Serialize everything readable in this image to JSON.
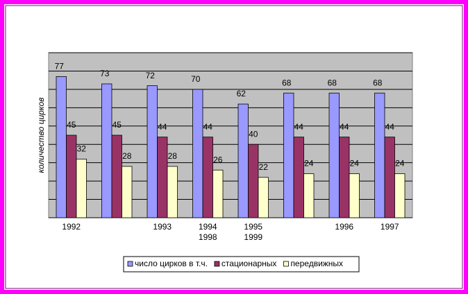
{
  "chart_data": {
    "type": "bar",
    "y_axis_label": "количество цирков",
    "categories": [
      "1992",
      null,
      "1993",
      "1994 1998",
      "1995 1999",
      null,
      "1996",
      "1997"
    ],
    "series": [
      {
        "name": "число цирков в т.ч.",
        "color": "#9999ff",
        "values": [
          77,
          73,
          72,
          70,
          62,
          68,
          68,
          68
        ]
      },
      {
        "name": "стационарных",
        "color": "#993366",
        "values": [
          45,
          45,
          44,
          44,
          40,
          44,
          44,
          44
        ]
      },
      {
        "name": "передвижных",
        "color": "#ffffcc",
        "values": [
          32,
          28,
          28,
          26,
          22,
          24,
          24,
          24
        ]
      }
    ],
    "ylim": [
      0,
      90
    ],
    "yticks": [
      0,
      10,
      20,
      30,
      40,
      50,
      60,
      70,
      80,
      90
    ],
    "grid": true,
    "legend": "bottom"
  }
}
